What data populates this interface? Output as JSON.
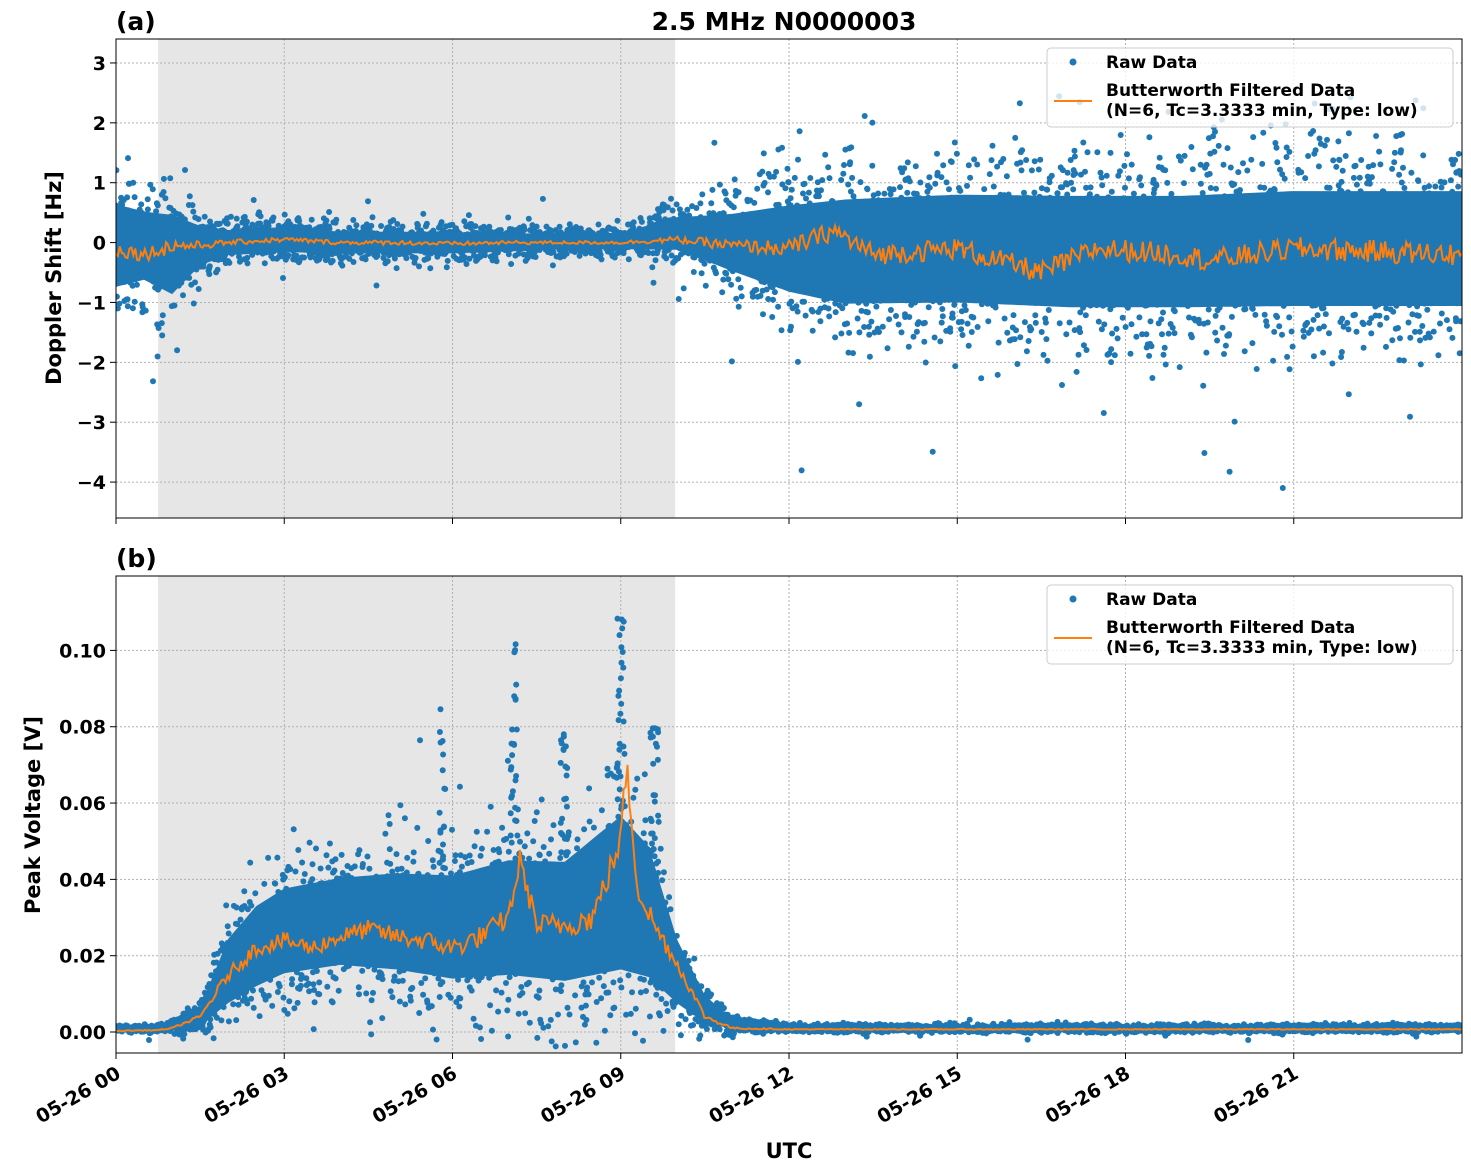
{
  "figure": {
    "title": "2.5 MHz N0000003",
    "xlabel": "UTC"
  },
  "chart_data": [
    {
      "type": "scatter",
      "panel_label": "(a)",
      "title": "2.5 MHz N0000003",
      "xlabel": "",
      "ylabel": "Doppler Shift [Hz]",
      "x_unit": "hours UTC on 05-26",
      "xlim": [
        0,
        24
      ],
      "ylim": [
        -4.6,
        3.4
      ],
      "yticks": [
        3,
        2,
        1,
        0,
        -1,
        -2,
        -3,
        -4
      ],
      "ytick_labels": [
        "3",
        "2",
        "1",
        "0",
        "−1",
        "−2",
        "−3",
        "−4"
      ],
      "grid": true,
      "legend_position": "upper-right",
      "shaded_region": [
        0.75,
        9.97
      ],
      "series": [
        {
          "name": "Raw Data",
          "kind": "points",
          "color": "#1f77b4",
          "envelope": [
            {
              "x": 0.0,
              "lo": -1.2,
              "hi": 1.1
            },
            {
              "x": 0.5,
              "lo": -1.0,
              "hi": 0.9
            },
            {
              "x": 1.0,
              "lo": -1.3,
              "hi": 0.9
            },
            {
              "x": 1.5,
              "lo": -0.6,
              "hi": 0.5
            },
            {
              "x": 2.0,
              "lo": -0.35,
              "hi": 0.35
            },
            {
              "x": 3.0,
              "lo": -0.3,
              "hi": 0.4
            },
            {
              "x": 4.0,
              "lo": -0.3,
              "hi": 0.3
            },
            {
              "x": 5.0,
              "lo": -0.3,
              "hi": 0.3
            },
            {
              "x": 6.0,
              "lo": -0.3,
              "hi": 0.3
            },
            {
              "x": 7.0,
              "lo": -0.25,
              "hi": 0.25
            },
            {
              "x": 8.0,
              "lo": -0.2,
              "hi": 0.25
            },
            {
              "x": 9.0,
              "lo": -0.2,
              "hi": 0.25
            },
            {
              "x": 10.0,
              "lo": -0.3,
              "hi": 0.6
            },
            {
              "x": 11.0,
              "lo": -0.8,
              "hi": 0.8
            },
            {
              "x": 12.0,
              "lo": -1.3,
              "hi": 1.1
            },
            {
              "x": 13.0,
              "lo": -1.6,
              "hi": 1.3
            },
            {
              "x": 15.0,
              "lo": -1.6,
              "hi": 1.4
            },
            {
              "x": 17.0,
              "lo": -1.7,
              "hi": 1.4
            },
            {
              "x": 19.0,
              "lo": -1.7,
              "hi": 1.4
            },
            {
              "x": 21.0,
              "lo": -1.7,
              "hi": 1.5
            },
            {
              "x": 24.0,
              "lo": -1.7,
              "hi": 1.5
            }
          ]
        },
        {
          "name": "Butterworth Filtered Data\n(N=6, Tc=3.3333 min, Type: low)",
          "kind": "line",
          "color": "#ff7f0e",
          "points": [
            [
              0.0,
              -0.1
            ],
            [
              0.5,
              -0.2
            ],
            [
              1.0,
              -0.05
            ],
            [
              1.5,
              -0.05
            ],
            [
              2.0,
              0.0
            ],
            [
              3.0,
              0.05
            ],
            [
              4.0,
              0.0
            ],
            [
              5.0,
              0.0
            ],
            [
              6.0,
              -0.02
            ],
            [
              7.0,
              0.0
            ],
            [
              8.0,
              0.0
            ],
            [
              9.0,
              0.0
            ],
            [
              10.0,
              0.05
            ],
            [
              11.0,
              -0.05
            ],
            [
              12.0,
              -0.1
            ],
            [
              12.8,
              0.2
            ],
            [
              13.5,
              -0.2
            ],
            [
              15.0,
              -0.1
            ],
            [
              16.5,
              -0.5
            ],
            [
              17.5,
              -0.1
            ],
            [
              19.0,
              -0.2
            ],
            [
              19.5,
              -0.3
            ],
            [
              21.0,
              -0.1
            ],
            [
              24.0,
              -0.2
            ]
          ]
        }
      ]
    },
    {
      "type": "scatter",
      "panel_label": "(b)",
      "title": "",
      "xlabel": "UTC",
      "ylabel": "Peak Voltage [V]",
      "x_unit": "hours UTC on 05-26",
      "xlim": [
        0,
        24
      ],
      "ylim": [
        -0.0055,
        0.1195
      ],
      "yticks": [
        0.0,
        0.02,
        0.04,
        0.06,
        0.08,
        0.1
      ],
      "ytick_labels": [
        "0.00",
        "0.02",
        "0.04",
        "0.06",
        "0.08",
        "0.10"
      ],
      "xticks": [
        0,
        3,
        6,
        9,
        12,
        15,
        18,
        21
      ],
      "xtick_labels": [
        "05-26 00",
        "05-26 03",
        "05-26 06",
        "05-26 09",
        "05-26 12",
        "05-26 15",
        "05-26 18",
        "05-26 21"
      ],
      "grid": true,
      "legend_position": "upper-right",
      "shaded_region": [
        0.75,
        9.97
      ],
      "series": [
        {
          "name": "Raw Data",
          "kind": "points",
          "color": "#1f77b4",
          "envelope": [
            {
              "x": 0.0,
              "lo": 0.0,
              "hi": 0.002
            },
            {
              "x": 0.75,
              "lo": 0.0,
              "hi": 0.002
            },
            {
              "x": 1.0,
              "lo": 0.0,
              "hi": 0.003
            },
            {
              "x": 1.5,
              "lo": 0.0,
              "hi": 0.008
            },
            {
              "x": 2.0,
              "lo": 0.002,
              "hi": 0.03
            },
            {
              "x": 2.5,
              "lo": 0.005,
              "hi": 0.04
            },
            {
              "x": 3.0,
              "lo": 0.008,
              "hi": 0.045
            },
            {
              "x": 4.0,
              "lo": 0.01,
              "hi": 0.048
            },
            {
              "x": 5.0,
              "lo": 0.008,
              "hi": 0.05
            },
            {
              "x": 6.0,
              "lo": 0.005,
              "hi": 0.05
            },
            {
              "x": 7.0,
              "lo": 0.005,
              "hi": 0.055
            },
            {
              "x": 8.0,
              "lo": 0.003,
              "hi": 0.055
            },
            {
              "x": 9.0,
              "lo": 0.003,
              "hi": 0.07
            },
            {
              "x": 9.5,
              "lo": 0.003,
              "hi": 0.06
            },
            {
              "x": 10.0,
              "lo": 0.002,
              "hi": 0.03
            },
            {
              "x": 10.5,
              "lo": 0.0,
              "hi": 0.012
            },
            {
              "x": 11.0,
              "lo": 0.0,
              "hi": 0.004
            },
            {
              "x": 12.0,
              "lo": 0.0,
              "hi": 0.002
            },
            {
              "x": 24.0,
              "lo": 0.0,
              "hi": 0.002
            }
          ],
          "peaks": [
            [
              5.8,
              0.087
            ],
            [
              7.1,
              0.102
            ],
            [
              8.0,
              0.08
            ],
            [
              9.0,
              0.114
            ],
            [
              9.6,
              0.083
            ]
          ]
        },
        {
          "name": "Butterworth Filtered Data\n(N=6, Tc=3.3333 min, Type: low)",
          "kind": "line",
          "color": "#ff7f0e",
          "points": [
            [
              0.0,
              0.0003
            ],
            [
              0.75,
              0.0005
            ],
            [
              1.0,
              0.001
            ],
            [
              1.5,
              0.004
            ],
            [
              2.0,
              0.015
            ],
            [
              2.5,
              0.022
            ],
            [
              3.0,
              0.024
            ],
            [
              3.5,
              0.022
            ],
            [
              4.0,
              0.025
            ],
            [
              4.5,
              0.027
            ],
            [
              5.0,
              0.025
            ],
            [
              5.5,
              0.024
            ],
            [
              6.0,
              0.022
            ],
            [
              6.5,
              0.025
            ],
            [
              7.0,
              0.03
            ],
            [
              7.2,
              0.045
            ],
            [
              7.5,
              0.028
            ],
            [
              8.0,
              0.028
            ],
            [
              8.5,
              0.03
            ],
            [
              9.0,
              0.05
            ],
            [
              9.1,
              0.07
            ],
            [
              9.3,
              0.038
            ],
            [
              9.6,
              0.028
            ],
            [
              10.0,
              0.018
            ],
            [
              10.5,
              0.004
            ],
            [
              11.0,
              0.001
            ],
            [
              12.0,
              0.0007
            ],
            [
              24.0,
              0.0007
            ]
          ]
        }
      ]
    }
  ]
}
